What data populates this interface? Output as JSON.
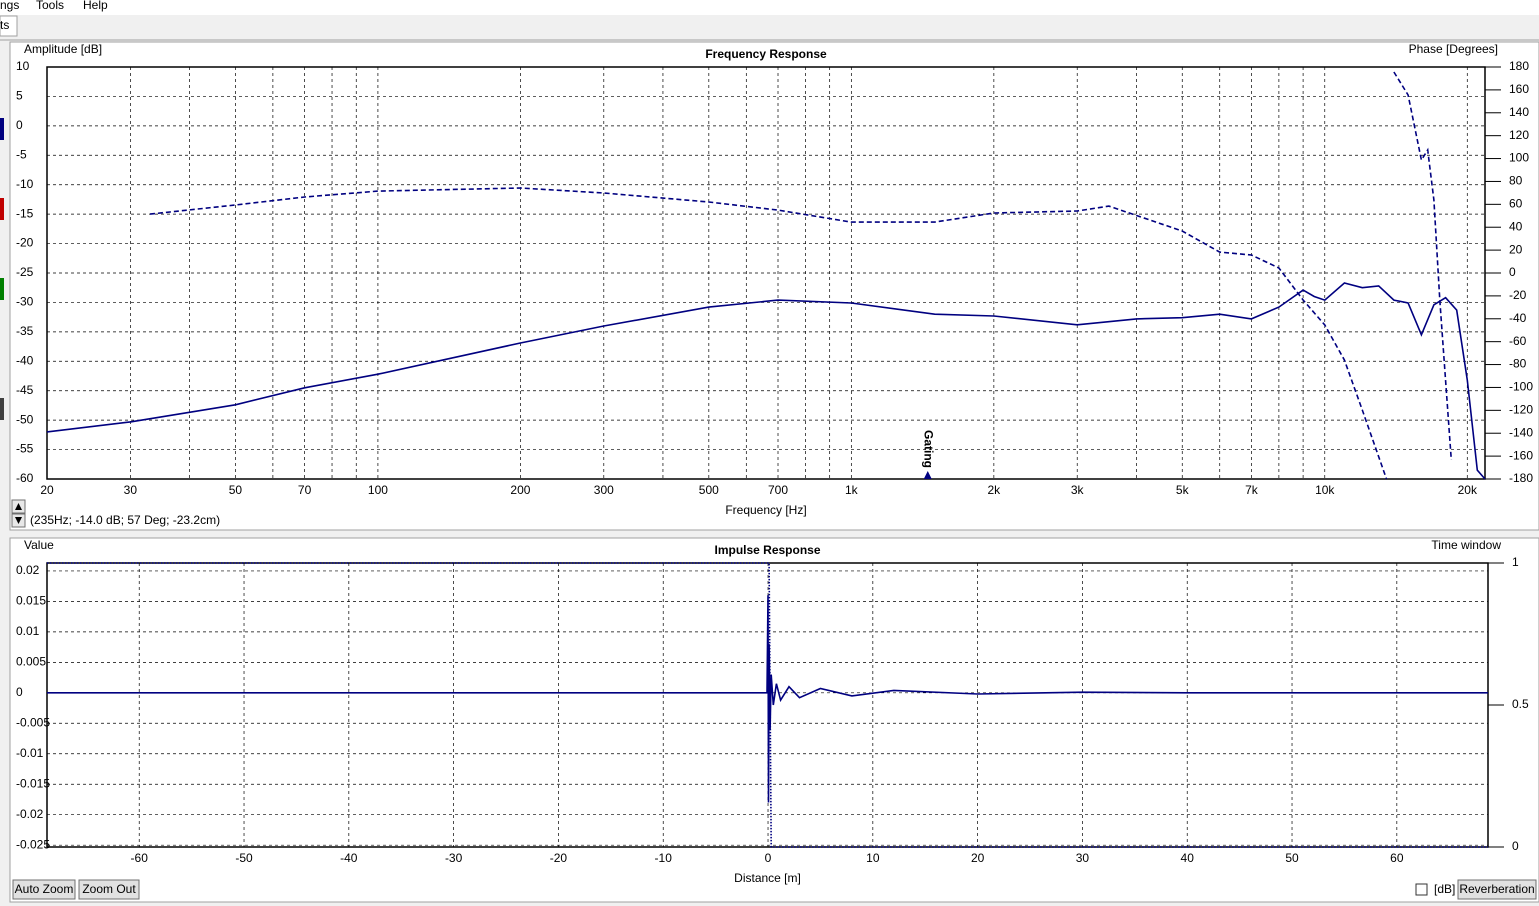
{
  "menu": [
    "ngs",
    "Tools",
    "Help"
  ],
  "tab": "ts",
  "status": "(235Hz; -14.0 dB; 57 Deg; -23.2cm)",
  "buttons": {
    "auto_zoom": "Auto Zoom",
    "zoom_out": "Zoom Out",
    "db": "[dB]",
    "reverberation": "Reverberation"
  },
  "chart_data": [
    {
      "type": "line",
      "title": "Frequency Response",
      "xlabel": "Frequency [Hz]",
      "ylabel": "Amplitude [dB]",
      "y2label": "Phase [Degrees]",
      "xlog": true,
      "xlim": [
        20,
        21800
      ],
      "xticks": [
        20,
        30,
        50,
        70,
        100,
        200,
        300,
        500,
        700,
        {
          "value": 1000,
          "label": "1k"
        },
        {
          "value": 2000,
          "label": "2k"
        },
        {
          "value": 3000,
          "label": "3k"
        },
        {
          "value": 5000,
          "label": "5k"
        },
        {
          "value": 7000,
          "label": "7k"
        },
        {
          "value": 10000,
          "label": "10k"
        },
        {
          "value": 20000,
          "label": "20k"
        }
      ],
      "xminorticks": [
        40,
        60,
        80,
        90,
        400,
        600,
        800,
        900,
        4000,
        6000,
        8000,
        9000
      ],
      "ylim": [
        -60,
        10
      ],
      "yticks": [
        10,
        5,
        0,
        -5,
        -10,
        -15,
        -20,
        -25,
        -30,
        -35,
        -40,
        -45,
        -50,
        -55,
        -60
      ],
      "y2lim": [
        -180,
        180
      ],
      "y2ticks": [
        180,
        160,
        140,
        120,
        100,
        80,
        60,
        40,
        20,
        0,
        -20,
        -40,
        -60,
        -80,
        -100,
        -120,
        -140,
        -160,
        -180
      ],
      "grid": true,
      "annotations": [
        {
          "text": "Gating",
          "x": 1450
        }
      ],
      "series": [
        {
          "color": "#000080",
          "style": "solid",
          "x": [
            20,
            30,
            50,
            70,
            100,
            200,
            300,
            500,
            700,
            1000,
            1500,
            2000,
            3000,
            4000,
            5000,
            6000,
            7000,
            8000,
            9000,
            9500,
            10000,
            11000,
            12000,
            13000,
            14000,
            15000,
            16000,
            17000,
            18000,
            19000,
            20000,
            21000,
            21800
          ],
          "values": [
            -52.0,
            -50.3,
            -47.4,
            -44.5,
            -42.2,
            -36.9,
            -34.0,
            -30.8,
            -29.6,
            -30.1,
            -32.0,
            -32.3,
            -33.8,
            -32.8,
            -32.6,
            -32.0,
            -32.8,
            -30.8,
            -27.9,
            -29.0,
            -29.6,
            -26.7,
            -27.5,
            -27.2,
            -29.6,
            -30.1,
            -35.5,
            -30.4,
            -29.2,
            -31.3,
            -43.2,
            -58.5,
            -60
          ]
        },
        {
          "color": "#000080",
          "style": "dashed",
          "axis": "y2",
          "x": [
            33,
            50,
            70,
            100,
            200,
            300,
            500,
            700,
            1000,
            1500,
            2000,
            3000,
            3500,
            5000,
            6000,
            7000,
            8000,
            9000,
            10000,
            11000,
            12000,
            13500,
            null,
            14000,
            15000,
            16000,
            16500,
            17000,
            17500,
            18500
          ],
          "values": [
            51.5,
            59.4,
            66.4,
            71.6,
            74.3,
            69.9,
            62.0,
            55.0,
            44.5,
            44.5,
            52.4,
            54.2,
            58.5,
            36.7,
            18.3,
            15.7,
            4.4,
            -23.6,
            -45.4,
            -76.0,
            -119.7,
            -180,
            null,
            175.6,
            155.5,
            98.7,
            107.5,
            63.8,
            -23.6,
            -163.4
          ]
        }
      ]
    },
    {
      "type": "line",
      "title": "Impulse Response",
      "xlabel": "Distance [m]",
      "ylabel": "Value",
      "y2label": "Time window",
      "xlim": [
        -68.8,
        68.7
      ],
      "xticks": [
        -60,
        -50,
        -40,
        -30,
        -20,
        -10,
        0,
        10,
        20,
        30,
        40,
        50,
        60
      ],
      "ylim": [
        -0.0253,
        0.0213
      ],
      "yticks": [
        0.02,
        0.015,
        0.01,
        0.005,
        0,
        -0.005,
        -0.01,
        -0.015,
        -0.02,
        -0.025
      ],
      "y2lim": [
        0,
        1
      ],
      "y2ticks": [
        1,
        0.5,
        0
      ],
      "grid": true,
      "series": [
        {
          "color": "#000080",
          "style": "solid",
          "x": [
            -68.8,
            -0.1,
            0,
            0.05,
            0.1,
            0.2,
            0.3,
            0.5,
            0.8,
            1.2,
            2,
            3,
            5,
            8,
            12,
            20,
            30,
            40,
            68.7
          ],
          "values": [
            0,
            0,
            0.016,
            -0.018,
            0.008,
            -0.006,
            0.003,
            -0.002,
            0.0015,
            -0.0012,
            0.001,
            -0.0008,
            0.0007,
            -0.0005,
            0.0004,
            -0.0002,
            0.0001,
            0,
            0
          ]
        },
        {
          "color": "#000080",
          "style": "dotted",
          "axis": "y2",
          "x": [
            -68.8,
            0.1,
            0.3,
            68.7
          ],
          "values": [
            1,
            1,
            0,
            0
          ]
        }
      ]
    }
  ]
}
